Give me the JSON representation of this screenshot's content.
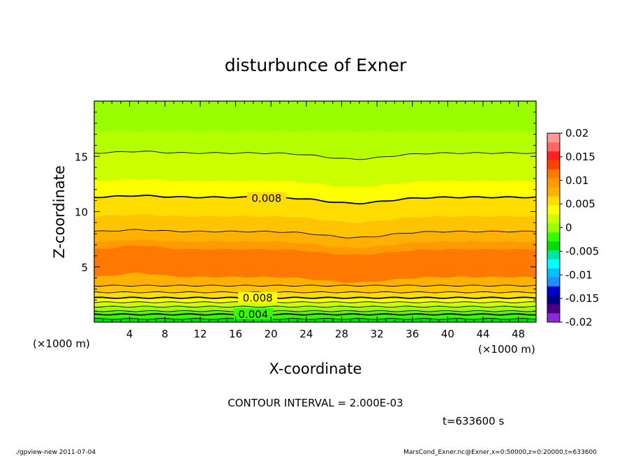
{
  "chart_data": {
    "type": "contour",
    "title": "disturbunce of Exner",
    "xlabel": "X-coordinate",
    "ylabel": "Z-coordinate",
    "x_unit_note": "(×1000 m)",
    "y_unit_note": "(×1000 m)",
    "xlim": [
      0,
      50
    ],
    "ylim": [
      0,
      20
    ],
    "x_ticks": [
      4,
      8,
      12,
      16,
      20,
      24,
      28,
      32,
      36,
      40,
      44,
      48
    ],
    "y_ticks": [
      5,
      10,
      15
    ],
    "contour_interval_label": "CONTOUR INTERVAL = 2.000E-03",
    "time_label": "t=633600 s",
    "contour_labels": [
      {
        "text": "0.008",
        "x": 19.5,
        "z": 11.3
      },
      {
        "text": "0.008",
        "x": 18.5,
        "z": 2.2
      },
      {
        "text": "0.004",
        "x": 18.0,
        "z": 0.7
      }
    ],
    "colorbar": {
      "min": -0.02,
      "max": 0.02,
      "tick_labels": [
        "0.02",
        "0.015",
        "0.01",
        "0.005",
        "0",
        "-0.005",
        "-0.01",
        "-0.015",
        "-0.02"
      ],
      "colors": [
        "#8a2be2",
        "#4b0082",
        "#00008b",
        "#0000cd",
        "#1e90ff",
        "#00bfff",
        "#00ffff",
        "#00e5a0",
        "#00dd00",
        "#33ff00",
        "#99ff00",
        "#ccff00",
        "#ffff00",
        "#ffdd00",
        "#ffb000",
        "#ff9a00",
        "#ff7800",
        "#ff4400",
        "#ff2222",
        "#ff6666",
        "#ff9999"
      ]
    },
    "bands": [
      {
        "z0": 0.0,
        "z1": 0.3,
        "color": "#00dd00"
      },
      {
        "z0": 0.3,
        "z1": 0.7,
        "color": "#33ff00"
      },
      {
        "z0": 0.7,
        "z1": 1.0,
        "color": "#66f000"
      },
      {
        "z0": 1.0,
        "z1": 1.4,
        "color": "#99ff00"
      },
      {
        "z0": 1.4,
        "z1": 1.8,
        "color": "#ccff00"
      },
      {
        "z0": 1.8,
        "z1": 2.2,
        "color": "#ffff00"
      },
      {
        "z0": 2.2,
        "z1": 2.7,
        "color": "#ffdd00"
      },
      {
        "z0": 2.7,
        "z1": 3.3,
        "color": "#ffc400"
      },
      {
        "z0": 3.3,
        "z1": 4.1,
        "color": "#ffb000"
      },
      {
        "z0": 4.1,
        "z1": 6.6,
        "color": "#ff7800"
      },
      {
        "z0": 6.6,
        "z1": 7.3,
        "color": "#ff9a00"
      },
      {
        "z0": 7.3,
        "z1": 8.2,
        "color": "#ffb000"
      },
      {
        "z0": 8.2,
        "z1": 9.6,
        "color": "#ffc400"
      },
      {
        "z0": 9.6,
        "z1": 11.3,
        "color": "#ffdd00"
      },
      {
        "z0": 11.3,
        "z1": 12.8,
        "color": "#ffff00"
      },
      {
        "z0": 12.8,
        "z1": 15.3,
        "color": "#ccff00"
      },
      {
        "z0": 15.3,
        "z1": 17.3,
        "color": "#b4ff00"
      },
      {
        "z0": 17.3,
        "z1": 20.0,
        "color": "#99ff00"
      }
    ],
    "contour_lines_z": [
      0.3,
      0.7,
      1.0,
      1.4,
      1.8,
      2.2,
      2.7,
      3.3,
      8.2,
      11.3,
      15.3
    ]
  },
  "footer": {
    "left": "./gpview-new   2011-07-04",
    "right": "MarsCond_Exner.nc@Exner,x=0:50000,z=0:20000,t=633600"
  }
}
